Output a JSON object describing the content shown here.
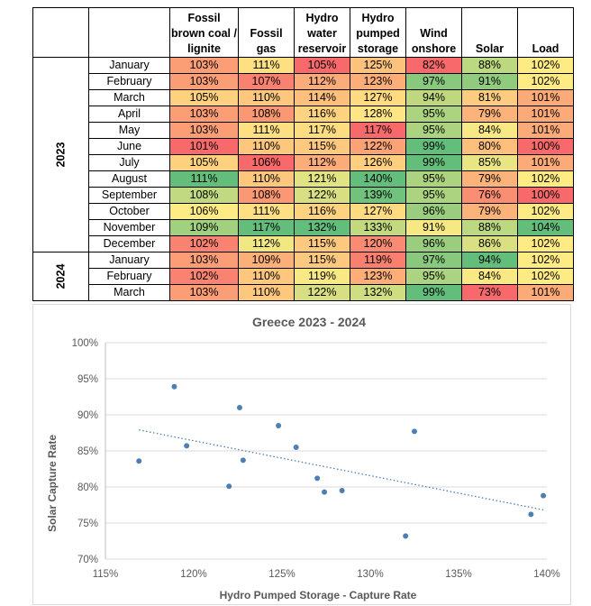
{
  "table": {
    "headers": [
      "",
      "",
      "Fossil brown coal / lignite",
      "Fossil gas",
      "Hydro water reservoir",
      "Hydro pumped storage",
      "Wind onshore",
      "Solar",
      "Load"
    ],
    "groups": [
      {
        "year": "2023",
        "rows": [
          {
            "month": "January",
            "values": [
              "103%",
              "111%",
              "105%",
              "125%",
              "82%",
              "88%",
              "102%"
            ]
          },
          {
            "month": "February",
            "values": [
              "103%",
              "107%",
              "112%",
              "123%",
              "97%",
              "91%",
              "102%"
            ]
          },
          {
            "month": "March",
            "values": [
              "105%",
              "110%",
              "114%",
              "127%",
              "94%",
              "81%",
              "101%"
            ]
          },
          {
            "month": "April",
            "values": [
              "103%",
              "108%",
              "116%",
              "128%",
              "95%",
              "79%",
              "101%"
            ]
          },
          {
            "month": "May",
            "values": [
              "103%",
              "111%",
              "117%",
              "117%",
              "95%",
              "84%",
              "101%"
            ]
          },
          {
            "month": "June",
            "values": [
              "101%",
              "110%",
              "115%",
              "122%",
              "99%",
              "80%",
              "100%"
            ]
          },
          {
            "month": "July",
            "values": [
              "105%",
              "106%",
              "112%",
              "126%",
              "99%",
              "85%",
              "101%"
            ]
          },
          {
            "month": "August",
            "values": [
              "111%",
              "110%",
              "121%",
              "140%",
              "95%",
              "79%",
              "102%"
            ]
          },
          {
            "month": "September",
            "values": [
              "108%",
              "108%",
              "122%",
              "139%",
              "95%",
              "76%",
              "100%"
            ]
          },
          {
            "month": "October",
            "values": [
              "106%",
              "111%",
              "116%",
              "127%",
              "96%",
              "79%",
              "102%"
            ]
          },
          {
            "month": "November",
            "values": [
              "109%",
              "117%",
              "132%",
              "133%",
              "91%",
              "88%",
              "104%"
            ]
          },
          {
            "month": "December",
            "values": [
              "102%",
              "112%",
              "115%",
              "120%",
              "96%",
              "86%",
              "102%"
            ]
          }
        ]
      },
      {
        "year": "2024",
        "rows": [
          {
            "month": "January",
            "values": [
              "103%",
              "109%",
              "115%",
              "119%",
              "97%",
              "94%",
              "102%"
            ]
          },
          {
            "month": "February",
            "values": [
              "102%",
              "110%",
              "119%",
              "123%",
              "95%",
              "84%",
              "102%"
            ]
          },
          {
            "month": "March",
            "values": [
              "103%",
              "110%",
              "122%",
              "132%",
              "99%",
              "73%",
              "101%"
            ]
          }
        ]
      }
    ]
  },
  "chart_data": {
    "type": "scatter",
    "title": "Greece 2023 - 2024",
    "xlabel": "Hydro Pumped Storage - Capture Rate",
    "ylabel": "Solar Capture Rate",
    "xlim": [
      115,
      140
    ],
    "ylim": [
      70,
      100
    ],
    "x_ticks": [
      "115%",
      "120%",
      "125%",
      "130%",
      "135%",
      "140%"
    ],
    "y_ticks": [
      "70%",
      "75%",
      "80%",
      "85%",
      "90%",
      "95%",
      "100%"
    ],
    "grid": "horizontal",
    "trendline": "linear, dotted",
    "points": [
      {
        "x": 116.9,
        "y": 83.6
      },
      {
        "x": 118.9,
        "y": 93.9
      },
      {
        "x": 119.6,
        "y": 85.7
      },
      {
        "x": 122.0,
        "y": 80.1
      },
      {
        "x": 122.6,
        "y": 91.0
      },
      {
        "x": 122.8,
        "y": 83.7
      },
      {
        "x": 124.8,
        "y": 88.5
      },
      {
        "x": 125.8,
        "y": 85.5
      },
      {
        "x": 127.0,
        "y": 81.2
      },
      {
        "x": 127.4,
        "y": 79.3
      },
      {
        "x": 128.4,
        "y": 79.5
      },
      {
        "x": 132.0,
        "y": 73.2
      },
      {
        "x": 132.5,
        "y": 87.7
      },
      {
        "x": 139.1,
        "y": 76.2
      },
      {
        "x": 139.8,
        "y": 78.8
      }
    ],
    "colors": {
      "points": "#4e7fb4",
      "trendline": "#4e7fb4",
      "grid": "#d9d9d9",
      "text": "#595959"
    }
  }
}
